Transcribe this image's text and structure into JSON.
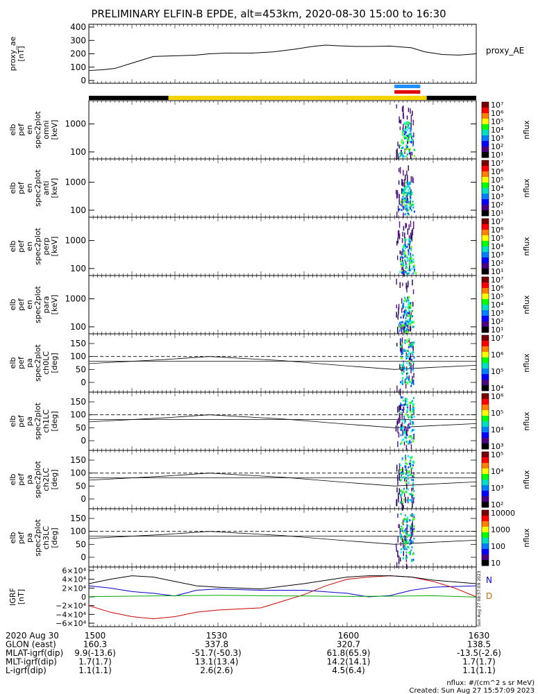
{
  "title": "PRELIMINARY ELFIN-B EPDE, alt=453km, 2020-08-30 15:00 to 16:30",
  "created": "Created: Sun Aug 27 15:57:09 2023",
  "side_stamp": "Sun Aug 27 08:57:09 2023",
  "nflux_units": "nflux: #/(cm^2 s sr MeV)",
  "grf_legend": [
    "N",
    "D"
  ],
  "footer": {
    "rows": [
      {
        "label": "2020 Aug 30",
        "values": [
          "1500",
          "1530",
          "1600",
          "1630"
        ]
      },
      {
        "label": "GLON (east)",
        "values": [
          "160.3",
          "337.8",
          "320.7",
          "138.5"
        ]
      },
      {
        "label": "MLAT-igrf(dip)",
        "values": [
          "9.9(-13.6)",
          "-51.7(-50.3)",
          "61.8(65.9)",
          "-13.5(-2.6)"
        ]
      },
      {
        "label": "MLT-igrf(dip)",
        "values": [
          "1.7(1.7)",
          "13.1(13.4)",
          "14.2(14.1)",
          "1.7(1.7)"
        ]
      },
      {
        "label": "L-igrf(dip)",
        "values": [
          "1.1(1.1)",
          "2.6(2.6)",
          "4.5(6.4)",
          "1.1(1.1)"
        ]
      }
    ]
  },
  "chart_data": [
    {
      "type": "line",
      "ylabel": [
        "proxy_ae",
        "[nT]"
      ],
      "legend": "proxy_AE",
      "ylim": [
        0,
        400
      ],
      "yticks": [
        "400",
        "300",
        "200",
        "100",
        "0"
      ],
      "xlim": [
        0,
        90
      ],
      "series": [
        {
          "name": "proxy_AE",
          "color": "#000000",
          "x": [
            0,
            3,
            6,
            10,
            15,
            20,
            25,
            28,
            32,
            38,
            43,
            48,
            52,
            55,
            58,
            62,
            66,
            70,
            75,
            78,
            82,
            86,
            90
          ],
          "y": [
            75,
            80,
            90,
            130,
            180,
            185,
            190,
            200,
            205,
            205,
            215,
            235,
            255,
            265,
            260,
            255,
            255,
            258,
            245,
            215,
            195,
            190,
            200
          ]
        }
      ]
    },
    {
      "type": "bar",
      "name": "region-bar",
      "segments": [
        {
          "from": 0,
          "to": 18.5,
          "color": "#000000"
        },
        {
          "from": 18.5,
          "to": 78.5,
          "color": "#f6d400"
        },
        {
          "from": 78.5,
          "to": 90,
          "color": "#000000"
        }
      ],
      "markers": [
        {
          "from": 71,
          "to": 77,
          "color": "#1e90ff"
        },
        {
          "from": 71,
          "to": 77,
          "color": "#e00000"
        }
      ]
    },
    {
      "type": "heatmap",
      "ylabel": [
        "elb",
        "pef",
        "en",
        "spec2plot",
        "omni",
        "[keV]"
      ],
      "yticks": [
        "1000",
        "100"
      ],
      "cbar_ticks": [
        "10⁷",
        "10⁶",
        "10⁵",
        "10⁴",
        "10³",
        "10²",
        "10¹"
      ],
      "cbar_label": "nflux"
    },
    {
      "type": "heatmap",
      "ylabel": [
        "elb",
        "pef",
        "en",
        "spec2plot",
        "anti",
        "[keV]"
      ],
      "yticks": [
        "1000",
        "100"
      ],
      "cbar_ticks": [
        "10⁷",
        "10⁶",
        "10⁵",
        "10⁴",
        "10³",
        "10²",
        "10¹"
      ],
      "cbar_label": "nflux"
    },
    {
      "type": "heatmap",
      "ylabel": [
        "elb",
        "pef",
        "en",
        "spec2plot",
        "perp",
        "[keV]"
      ],
      "yticks": [
        "1000",
        "100"
      ],
      "cbar_ticks": [
        "10⁷",
        "10⁶",
        "10⁵",
        "10⁴",
        "10³",
        "10²",
        "10¹"
      ],
      "cbar_label": "nflux"
    },
    {
      "type": "heatmap",
      "ylabel": [
        "elb",
        "pef",
        "en",
        "spec2plot",
        "para",
        "[keV]"
      ],
      "yticks": [
        "1000",
        "100"
      ],
      "cbar_ticks": [
        "10⁷",
        "10⁶",
        "10⁵",
        "10⁴",
        "10³",
        "10²",
        "10¹"
      ],
      "cbar_label": "nflux"
    },
    {
      "type": "heatmap",
      "ylabel": [
        "elb",
        "pef",
        "pa",
        "spec2plot",
        "ch0LC",
        "[deg]"
      ],
      "yticks": [
        "150",
        "100",
        "50",
        "0"
      ],
      "cbar_ticks": [
        "10⁷",
        "10⁶",
        "10⁵",
        "10⁴"
      ],
      "cbar_label": "nflux"
    },
    {
      "type": "heatmap",
      "ylabel": [
        "elb",
        "pef",
        "pa",
        "spec2plot",
        "ch1LC",
        "[deg]"
      ],
      "yticks": [
        "150",
        "100",
        "50",
        "0"
      ],
      "cbar_ticks": [
        "10⁶",
        "10⁵",
        "10⁴",
        "10³"
      ],
      "cbar_label": "nflux"
    },
    {
      "type": "heatmap",
      "ylabel": [
        "elb",
        "pef",
        "pa",
        "spec2plot",
        "ch2LC",
        "[deg]"
      ],
      "yticks": [
        "150",
        "100",
        "50",
        "0"
      ],
      "cbar_ticks": [
        "10⁵",
        "10⁴",
        "10³",
        "10²"
      ],
      "cbar_label": "nflux"
    },
    {
      "type": "heatmap",
      "ylabel": [
        "elb",
        "pef",
        "pa",
        "spec2plot",
        "ch3LC",
        "[deg]"
      ],
      "yticks": [
        "150",
        "100",
        "50",
        "0"
      ],
      "cbar_ticks": [
        "10000",
        "1000",
        "100",
        "10"
      ],
      "cbar_label": "nflux"
    },
    {
      "type": "line",
      "ylabel": [
        "IGRF",
        "[nT]"
      ],
      "ylim": [
        -60000,
        60000
      ],
      "yticks": [
        "6×10⁴",
        "4×10⁴",
        "2×10⁴",
        "0",
        "−2×10⁴",
        "−4×10⁴",
        "−6×10⁴"
      ],
      "xlim": [
        0,
        90
      ],
      "series": [
        {
          "name": "N",
          "color": "#0000cc",
          "x": [
            0,
            5,
            10,
            15,
            20,
            25,
            30,
            40,
            50,
            60,
            65,
            70,
            75,
            80,
            90
          ],
          "y": [
            25000,
            20000,
            12000,
            8000,
            2000,
            15000,
            18000,
            15000,
            15000,
            8000,
            0,
            3000,
            15000,
            22000,
            25000
          ]
        },
        {
          "name": "D",
          "color": "#cc0000",
          "x": [
            0,
            5,
            10,
            15,
            20,
            25,
            30,
            40,
            50,
            55,
            60,
            65,
            70,
            75,
            80,
            85,
            90
          ],
          "y": [
            -20000,
            -35000,
            -45000,
            -50000,
            -45000,
            -35000,
            -30000,
            -25000,
            5000,
            25000,
            40000,
            45000,
            48000,
            45000,
            35000,
            20000,
            0
          ]
        },
        {
          "name": "",
          "color": "#000000",
          "x": [
            0,
            5,
            10,
            15,
            20,
            25,
            30,
            40,
            50,
            60,
            65,
            70,
            75,
            80,
            90
          ],
          "y": [
            30000,
            40000,
            48000,
            45000,
            35000,
            25000,
            22000,
            18000,
            30000,
            45000,
            48000,
            48000,
            45000,
            38000,
            30000
          ]
        },
        {
          "name": "",
          "color": "#00aa00",
          "x": [
            0,
            10,
            20,
            30,
            40,
            50,
            60,
            70,
            80,
            90
          ],
          "y": [
            500,
            1500,
            2500,
            3500,
            2500,
            2000,
            1000,
            1500,
            2500,
            -500
          ]
        }
      ]
    }
  ]
}
